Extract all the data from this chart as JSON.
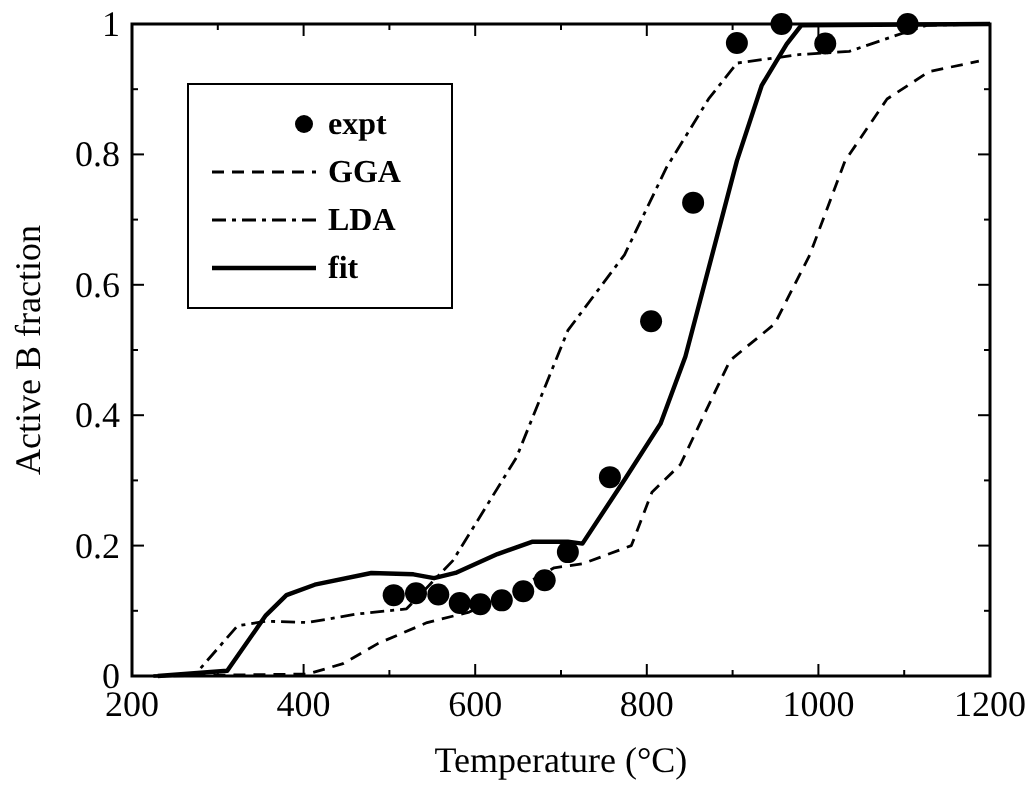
{
  "chart_data": {
    "type": "line",
    "xlabel": "Temperature (°C)",
    "ylabel": "Active B fraction",
    "xlim": [
      200,
      1200
    ],
    "ylim": [
      0,
      1
    ],
    "xticks": [
      200,
      400,
      600,
      800,
      1000,
      1200
    ],
    "yticks": [
      0,
      0.2,
      0.4,
      0.6,
      0.8,
      1
    ],
    "grid": false,
    "legend": "top left",
    "series": [
      {
        "name": "expt",
        "type": "scatter",
        "marker": "circle",
        "color": "#000000",
        "x": [
          505,
          531,
          557,
          582,
          606,
          631,
          656,
          681,
          708,
          757,
          805,
          854,
          905,
          957,
          1008,
          1104
        ],
        "values": [
          0.124,
          0.127,
          0.125,
          0.112,
          0.11,
          0.116,
          0.13,
          0.147,
          0.19,
          0.305,
          0.544,
          0.726,
          0.971,
          1.0,
          0.97,
          1.0
        ]
      },
      {
        "name": "GGA",
        "line_style": "dashed",
        "color": "#000000",
        "x": [
          225,
          405,
          446,
          487,
          544,
          593,
          643,
          692,
          725,
          782,
          806,
          839,
          897,
          949,
          990,
          1031,
          1080,
          1129,
          1187
        ],
        "values": [
          0,
          0.003,
          0.019,
          0.05,
          0.082,
          0.098,
          0.13,
          0.166,
          0.172,
          0.2,
          0.282,
          0.324,
          0.484,
          0.54,
          0.646,
          0.79,
          0.885,
          0.927,
          0.943
        ]
      },
      {
        "name": "LDA",
        "line_style": "dashdot",
        "color": "#000000",
        "x": [
          225,
          274,
          323,
          356,
          405,
          462,
          520,
          574,
          648,
          708,
          774,
          823,
          872,
          905,
          977,
          1036,
          1085,
          1126,
          1200
        ],
        "values": [
          0,
          0.003,
          0.077,
          0.084,
          0.082,
          0.095,
          0.103,
          0.177,
          0.335,
          0.53,
          0.646,
          0.78,
          0.885,
          0.94,
          0.953,
          0.958,
          0.98,
          0.998,
          1
        ]
      },
      {
        "name": "fit",
        "line_style": "solid",
        "color": "#000000",
        "x": [
          230,
          311,
          356,
          380,
          413,
          479,
          528,
          552,
          577,
          626,
          667,
          708,
          725,
          775,
          816,
          845,
          905,
          934,
          963,
          980,
          1200
        ],
        "values": [
          0,
          0.008,
          0.093,
          0.124,
          0.14,
          0.158,
          0.156,
          0.15,
          0.158,
          0.187,
          0.206,
          0.206,
          0.203,
          0.303,
          0.387,
          0.49,
          0.79,
          0.906,
          0.969,
          0.998,
          1
        ]
      }
    ]
  }
}
